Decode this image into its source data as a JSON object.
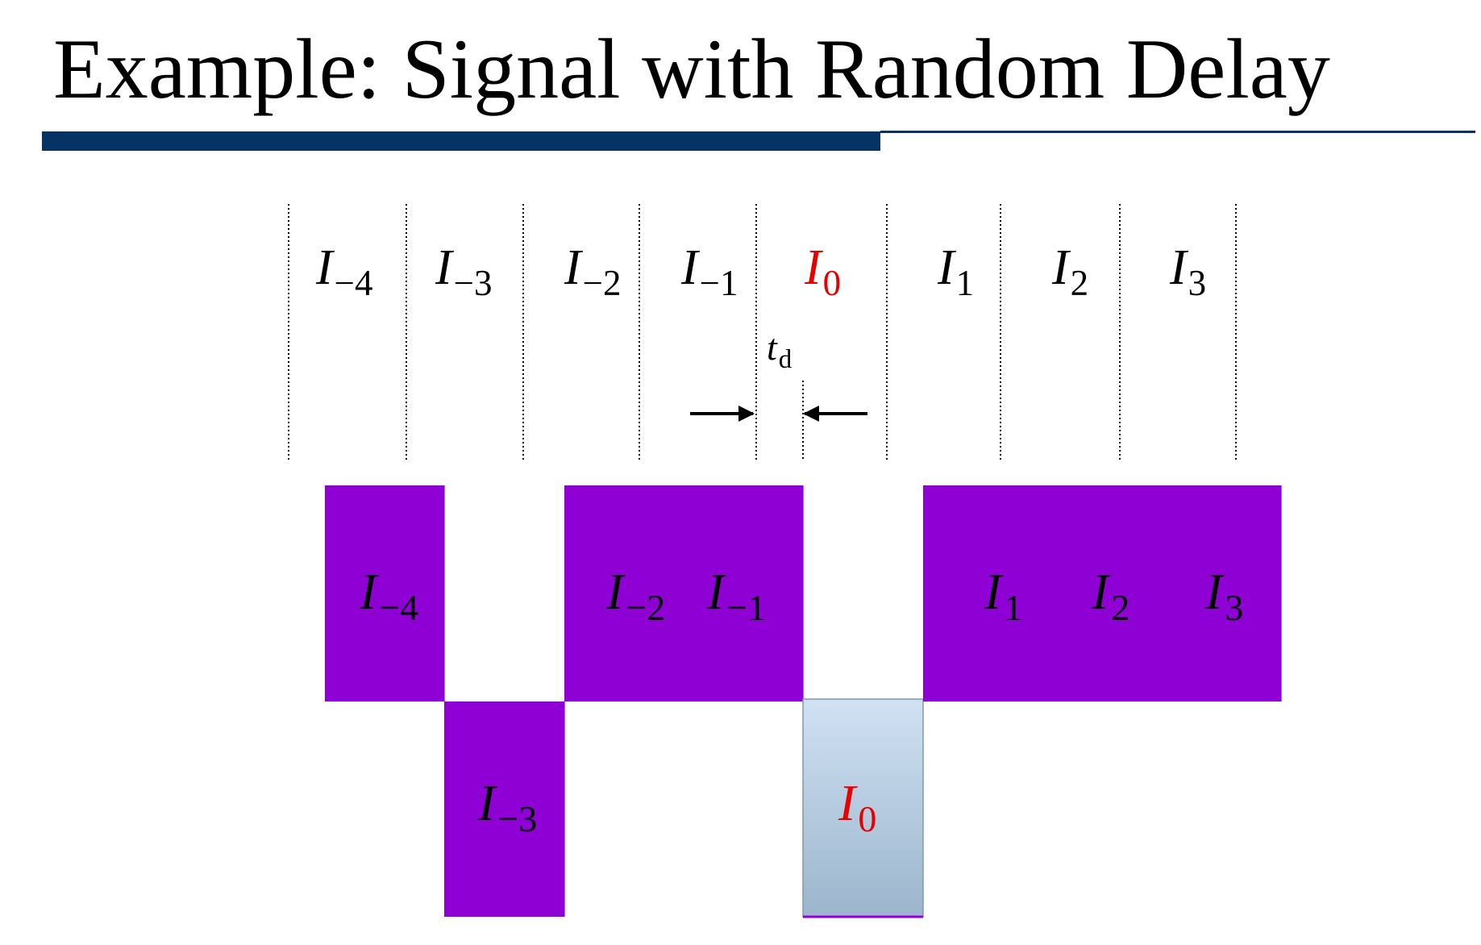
{
  "title": "Example: Signal with Random Delay",
  "colors": {
    "rule": "#063366",
    "bit": "#8E00D4",
    "bit_current_top": "#D0E1F3",
    "bit_current_bottom": "#9BB5CC",
    "highlight_text": "#E60000",
    "text": "#000000"
  },
  "slot_labels": [
    {
      "base": "I",
      "sub": "−4",
      "highlight": false
    },
    {
      "base": "I",
      "sub": "−3",
      "highlight": false
    },
    {
      "base": "I",
      "sub": "−2",
      "highlight": false
    },
    {
      "base": "I",
      "sub": "−1",
      "highlight": false
    },
    {
      "base": "I",
      "sub": "0",
      "highlight": true
    },
    {
      "base": "I",
      "sub": "1",
      "highlight": false
    },
    {
      "base": "I",
      "sub": "2",
      "highlight": false
    },
    {
      "base": "I",
      "sub": "3",
      "highlight": false
    }
  ],
  "delay_label": {
    "base": "t",
    "sub": "d"
  },
  "bits": [
    {
      "label": {
        "base": "I",
        "sub": "−4"
      },
      "level": "high",
      "highlight": false
    },
    {
      "label": {
        "base": "I",
        "sub": "−3"
      },
      "level": "low",
      "highlight": false
    },
    {
      "label": {
        "base": "I",
        "sub": "−2"
      },
      "level": "high",
      "highlight": false
    },
    {
      "label": {
        "base": "I",
        "sub": "−1"
      },
      "level": "high",
      "highlight": false
    },
    {
      "label": {
        "base": "I",
        "sub": "0"
      },
      "level": "low",
      "highlight": true
    },
    {
      "label": {
        "base": "I",
        "sub": "1"
      },
      "level": "high",
      "highlight": false
    },
    {
      "label": {
        "base": "I",
        "sub": "2"
      },
      "level": "high",
      "highlight": false
    },
    {
      "label": {
        "base": "I",
        "sub": "3"
      },
      "level": "high",
      "highlight": false
    }
  ]
}
